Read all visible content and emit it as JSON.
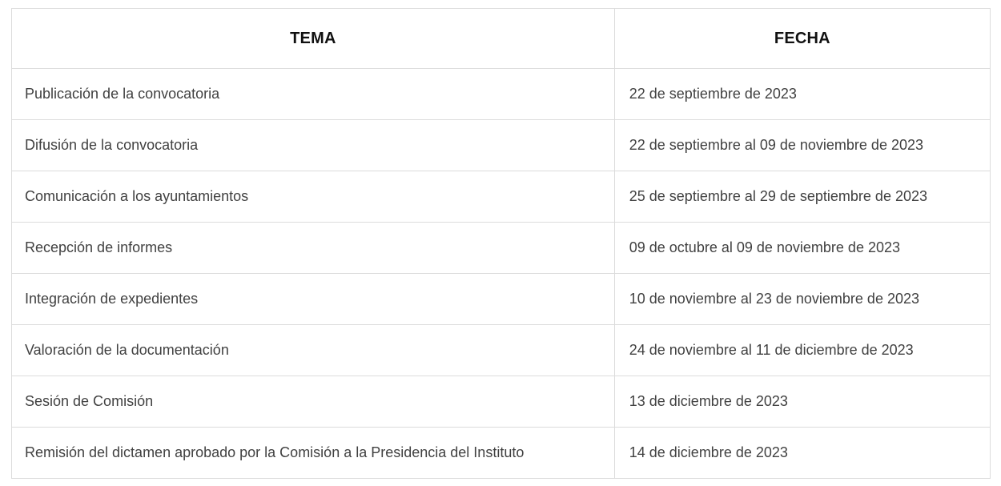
{
  "table": {
    "columns": [
      {
        "label": "TEMA"
      },
      {
        "label": "FECHA"
      }
    ],
    "rows": [
      {
        "tema": "Publicación de la convocatoria",
        "fecha": "22 de septiembre de 2023"
      },
      {
        "tema": "Difusión de la convocatoria",
        "fecha": "22 de septiembre al 09 de noviembre de 2023"
      },
      {
        "tema": "Comunicación a los ayuntamientos",
        "fecha": "25 de septiembre al 29 de septiembre de 2023"
      },
      {
        "tema": "Recepción de informes",
        "fecha": "09 de octubre al 09 de noviembre de 2023"
      },
      {
        "tema": "Integración de expedientes",
        "fecha": "10 de noviembre al 23 de noviembre de 2023"
      },
      {
        "tema": "Valoración de la documentación",
        "fecha": "24 de noviembre al 11 de diciembre de 2023"
      },
      {
        "tema": "Sesión de Comisión",
        "fecha": "13 de diciembre de 2023"
      },
      {
        "tema": "Remisión del dictamen aprobado por la Comisión a la Presidencia del Instituto",
        "fecha": "14 de diciembre de 2023"
      }
    ],
    "colors": {
      "border": "#dcdcdc",
      "header_text": "#111111",
      "body_text": "#414141",
      "background": "#ffffff"
    }
  }
}
